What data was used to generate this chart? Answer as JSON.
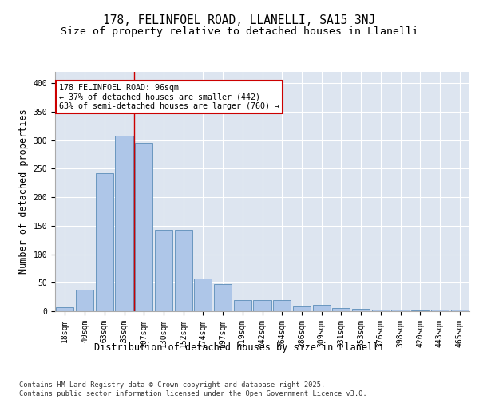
{
  "title1": "178, FELINFOEL ROAD, LLANELLI, SA15 3NJ",
  "title2": "Size of property relative to detached houses in Llanelli",
  "xlabel": "Distribution of detached houses by size in Llanelli",
  "ylabel": "Number of detached properties",
  "categories": [
    "18sqm",
    "40sqm",
    "63sqm",
    "85sqm",
    "107sqm",
    "130sqm",
    "152sqm",
    "174sqm",
    "197sqm",
    "219sqm",
    "242sqm",
    "264sqm",
    "286sqm",
    "309sqm",
    "331sqm",
    "353sqm",
    "376sqm",
    "398sqm",
    "420sqm",
    "443sqm",
    "465sqm"
  ],
  "values": [
    7,
    38,
    242,
    308,
    295,
    143,
    143,
    57,
    47,
    19,
    19,
    20,
    9,
    11,
    6,
    4,
    3,
    3,
    1,
    3,
    3
  ],
  "bar_color": "#aec6e8",
  "bar_edge_color": "#5b8db8",
  "background_color": "#dde5f0",
  "grid_color": "#ffffff",
  "red_line_x": 3.5,
  "annotation_text": "178 FELINFOEL ROAD: 96sqm\n← 37% of detached houses are smaller (442)\n63% of semi-detached houses are larger (760) →",
  "annotation_box_color": "#ffffff",
  "annotation_box_edge_color": "#cc0000",
  "ylim": [
    0,
    420
  ],
  "yticks": [
    0,
    50,
    100,
    150,
    200,
    250,
    300,
    350,
    400
  ],
  "footer": "Contains HM Land Registry data © Crown copyright and database right 2025.\nContains public sector information licensed under the Open Government Licence v3.0.",
  "title_fontsize": 10.5,
  "subtitle_fontsize": 9.5,
  "tick_fontsize": 7,
  "label_fontsize": 8.5,
  "footer_fontsize": 6.2
}
